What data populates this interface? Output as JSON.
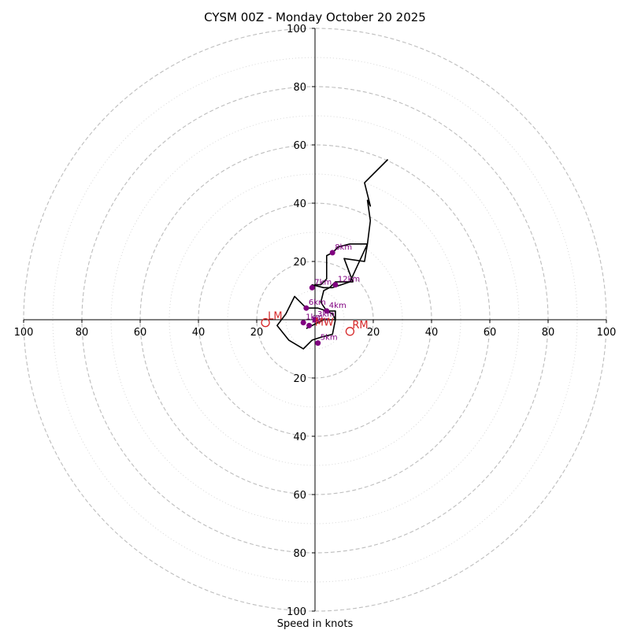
{
  "chart_data": {
    "type": "line",
    "title": "CYSM 00Z - Monday October 20 2025",
    "xlabel": "Speed in knots",
    "ylabel": "",
    "xlim": [
      -100,
      100
    ],
    "ylim": [
      -100,
      100
    ],
    "grid": true,
    "tick_labels": {
      "left": [
        "100",
        "80",
        "60",
        "40",
        "20"
      ],
      "right": [
        "20",
        "40",
        "60",
        "80",
        "100"
      ],
      "top": [
        "100",
        "80",
        "60",
        "40",
        "20"
      ],
      "bottom": [
        "20",
        "40",
        "60",
        "80",
        "100"
      ]
    },
    "rings_dashed": [
      20,
      40,
      60,
      80,
      100
    ],
    "rings_dotted": [
      10,
      30,
      50,
      70,
      90
    ],
    "hodograph_line": {
      "color": "#000000",
      "points": [
        [
          -3,
          -3
        ],
        [
          -1,
          -2
        ],
        [
          1,
          -1
        ],
        [
          3,
          0
        ],
        [
          5,
          0
        ],
        [
          7,
          0
        ],
        [
          7,
          3
        ],
        [
          4,
          3
        ],
        [
          1,
          4
        ],
        [
          -3,
          4
        ],
        [
          -5,
          6
        ],
        [
          -7,
          8
        ],
        [
          -10,
          2
        ],
        [
          -13,
          -2
        ],
        [
          -9,
          -7
        ],
        [
          -4,
          -10
        ],
        [
          -1,
          -7
        ],
        [
          2,
          -6
        ],
        [
          6,
          -5
        ],
        [
          7,
          0
        ],
        [
          6,
          2
        ],
        [
          4,
          3
        ],
        [
          2,
          6
        ],
        [
          3,
          10
        ],
        [
          5,
          11
        ],
        [
          7,
          13
        ],
        [
          10,
          13
        ],
        [
          13,
          13
        ],
        [
          10,
          21
        ],
        [
          17,
          20
        ],
        [
          18,
          26
        ],
        [
          12,
          26
        ],
        [
          8,
          25
        ],
        [
          6,
          23
        ],
        [
          4,
          22
        ],
        [
          4,
          14
        ],
        [
          2,
          12
        ],
        [
          0,
          12
        ],
        [
          -1,
          11
        ],
        [
          -1,
          12
        ],
        [
          3,
          11
        ],
        [
          6,
          11
        ],
        [
          9,
          12
        ],
        [
          12,
          13
        ],
        [
          18,
          26
        ],
        [
          19,
          34
        ],
        [
          18,
          41
        ],
        [
          19,
          39
        ],
        [
          17,
          47
        ],
        [
          25,
          55
        ]
      ]
    },
    "height_markers": {
      "color": "#800080",
      "points": [
        {
          "label": "1km",
          "x": -4,
          "y": -1
        },
        {
          "label": "2km",
          "x": -2,
          "y": -2
        },
        {
          "label": "3km",
          "x": 0,
          "y": 0
        },
        {
          "label": "4km",
          "x": 4,
          "y": 3
        },
        {
          "label": "5km",
          "x": 1,
          "y": -8
        },
        {
          "label": "6km",
          "x": -3,
          "y": 4
        },
        {
          "label": "7km",
          "x": -1,
          "y": 11
        },
        {
          "label": "8km",
          "x": 6,
          "y": 23
        },
        {
          "label": "12km",
          "x": 7,
          "y": 12
        }
      ]
    },
    "storm_motion": {
      "color": "#d62728",
      "points": [
        {
          "label": "LM",
          "x": -17,
          "y": -1
        },
        {
          "label": "RM",
          "x": 12,
          "y": -4
        },
        {
          "label": "MW",
          "x": 1,
          "y": -1
        }
      ]
    }
  }
}
